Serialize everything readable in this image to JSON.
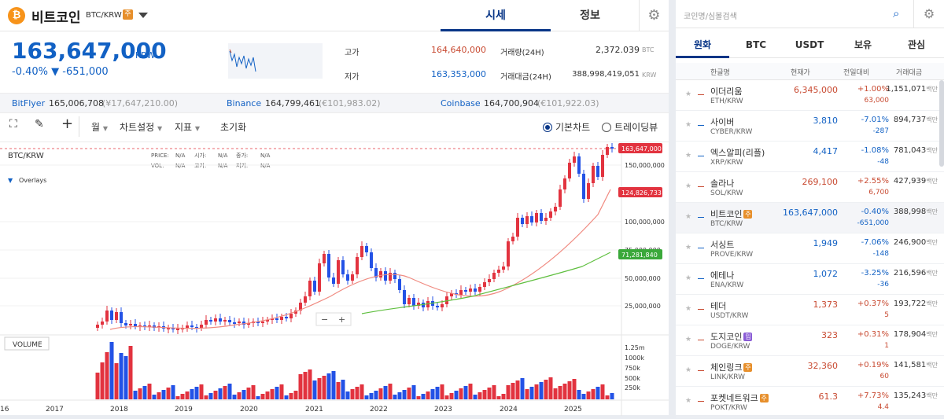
{
  "header": {
    "coin_name": "비트코인",
    "pair": "BTC/KRW",
    "warn_badge": "주",
    "tabs": [
      "시세",
      "정보"
    ]
  },
  "ticker": {
    "price": "163,647,000",
    "unit": "KRW",
    "change": "-0.40% ▼ -651,000",
    "high_label": "고가",
    "high_value": "164,640,000",
    "low_label": "저가",
    "low_value": "163,353,000",
    "vol_label": "거래량(24H)",
    "vol_value": "2,372.039",
    "vol_unit": "BTC",
    "amt_label": "거래대금(24H)",
    "amt_value": "388,998,419,051",
    "amt_unit": "KRW"
  },
  "exchanges": [
    {
      "name": "BitFlyer",
      "price": "165,006,708",
      "sub": "(¥17,647,210.00)"
    },
    {
      "name": "Binance",
      "price": "164,799,461",
      "sub": "(€101,983.02)"
    },
    {
      "name": "Coinbase",
      "price": "164,700,904",
      "sub": "(€101,922.03)"
    }
  ],
  "toolbar": {
    "period": "월",
    "chart_settings": "차트설정",
    "indicator": "지표",
    "reset": "초기화",
    "basic_chart": "기본차트",
    "tradingview": "트레이딩뷰"
  },
  "chart_data": {
    "type": "candlestick",
    "symbol": "BTC/KRW",
    "overlays_label": "Overlays",
    "ohlc_labels": [
      "PRICE:",
      "N/A",
      "시가:",
      "N/A",
      "종가:",
      "N/A",
      "VOL:",
      "N/A",
      "고가:",
      "N/A",
      "저가:",
      "N/A"
    ],
    "volume_label": "VOLUME",
    "price_axis": [
      "150,000,000",
      "100,000,000",
      "75,000,000",
      "50,000,000",
      "25,000,000"
    ],
    "volume_axis": [
      "1.25m",
      "1000k",
      "750k",
      "500k",
      "250k"
    ],
    "x_labels": [
      "16",
      "2017",
      "2018",
      "2019",
      "2020",
      "2021",
      "2022",
      "2023",
      "2024",
      "2025"
    ],
    "current_price_tag": "163,647,000",
    "ma_short_tag": "124,826,733",
    "ma_long_tag": "71,281,840",
    "zoom_minus": "−",
    "zoom_plus": "+",
    "colors": {
      "up": "#e2333f",
      "down": "#2352e6",
      "ma_short": "#f08a80",
      "ma_long": "#5fbf3f"
    }
  },
  "market": {
    "search_placeholder": "코인명/심볼검색",
    "tabs": [
      "원화",
      "BTC",
      "USDT",
      "보유",
      "관심"
    ],
    "columns": [
      "한글명",
      "현재가",
      "전일대비",
      "거래대금"
    ],
    "volume_unit": "백만",
    "rows": [
      {
        "name": "이더리움",
        "symbol": "ETH/KRW",
        "price": "6,345,000",
        "change": "+1.00%",
        "change_amt": "63,000",
        "volume": "1,151,071",
        "dir": "up"
      },
      {
        "name": "사이버",
        "symbol": "CYBER/KRW",
        "price": "3,810",
        "change": "-7.01%",
        "change_amt": "-287",
        "volume": "894,737",
        "dir": "down"
      },
      {
        "name": "엑스알피(리플)",
        "symbol": "XRP/KRW",
        "price": "4,417",
        "change": "-1.08%",
        "change_amt": "-48",
        "volume": "781,043",
        "dir": "down"
      },
      {
        "name": "솔라나",
        "symbol": "SOL/KRW",
        "price": "269,100",
        "change": "+2.55%",
        "change_amt": "6,700",
        "volume": "427,939",
        "dir": "up"
      },
      {
        "name": "비트코인",
        "symbol": "BTC/KRW",
        "price": "163,647,000",
        "change": "-0.40%",
        "change_amt": "-651,000",
        "volume": "388,998",
        "dir": "down",
        "badge": "주"
      },
      {
        "name": "서싱트",
        "symbol": "PROVE/KRW",
        "price": "1,949",
        "change": "-7.06%",
        "change_amt": "-148",
        "volume": "246,900",
        "dir": "down"
      },
      {
        "name": "에테나",
        "symbol": "ENA/KRW",
        "price": "1,072",
        "change": "-3.25%",
        "change_amt": "-36",
        "volume": "216,596",
        "dir": "down"
      },
      {
        "name": "테더",
        "symbol": "USDT/KRW",
        "price": "1,373",
        "change": "+0.37%",
        "change_amt": "5",
        "volume": "193,722",
        "dir": "up"
      },
      {
        "name": "도지코인",
        "symbol": "DOGE/KRW",
        "price": "323",
        "change": "+0.31%",
        "change_amt": "1",
        "volume": "178,904",
        "dir": "up",
        "badge2": "밈"
      },
      {
        "name": "체인링크",
        "symbol": "LINK/KRW",
        "price": "32,360",
        "change": "+0.19%",
        "change_amt": "60",
        "volume": "141,581",
        "dir": "up",
        "badge": "주"
      },
      {
        "name": "포켓네트워크",
        "symbol": "POKT/KRW",
        "price": "61.3",
        "change": "+7.73%",
        "change_amt": "4.4",
        "volume": "135,243",
        "dir": "up",
        "badge": "주"
      }
    ]
  }
}
